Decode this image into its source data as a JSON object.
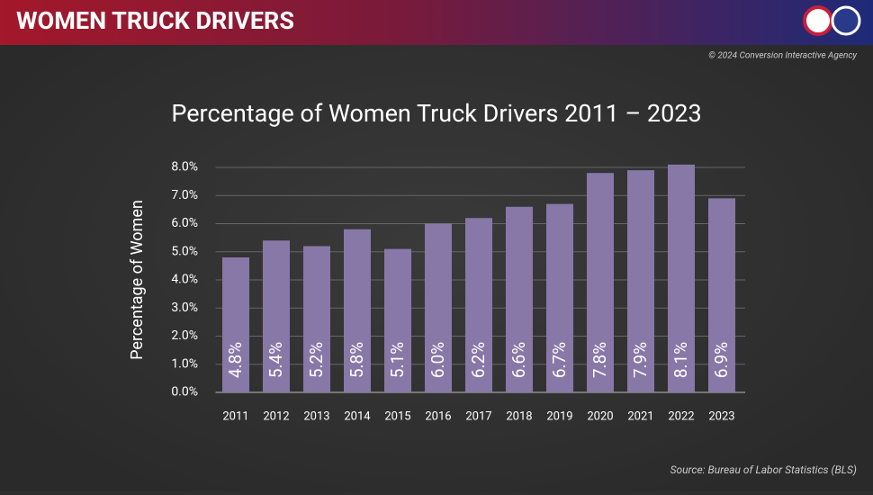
{
  "header": {
    "title": "WOMEN TRUCK DRIVERS",
    "copyright": "© 2024 Conversion Interactive Agency"
  },
  "chart_data": {
    "type": "bar",
    "title": "Percentage of Women Truck Drivers 2011 – 2023",
    "y_label": "Percentage of Women",
    "categories": [
      "2011",
      "2012",
      "2013",
      "2014",
      "2015",
      "2016",
      "2017",
      "2018",
      "2019",
      "2020",
      "2021",
      "2022",
      "2023"
    ],
    "values": [
      4.8,
      5.4,
      5.2,
      5.8,
      5.1,
      6.0,
      6.2,
      6.6,
      6.7,
      7.8,
      7.9,
      8.1,
      6.9
    ],
    "value_labels": [
      "4.8%",
      "5.4%",
      "5.2%",
      "5.8%",
      "5.1%",
      "6.0%",
      "6.2%",
      "6.6%",
      "6.7%",
      "7.8%",
      "7.9%",
      "8.1%",
      "6.9%"
    ],
    "color": "#8878a8",
    "ylim": [
      0,
      8
    ],
    "yticks": [
      {
        "value": 0,
        "label": "0.0%"
      },
      {
        "value": 1,
        "label": "1.0%"
      },
      {
        "value": 2,
        "label": "2.0%"
      },
      {
        "value": 3,
        "label": "3.0%"
      },
      {
        "value": 4,
        "label": "4.0%"
      },
      {
        "value": 5,
        "label": "5.0%"
      },
      {
        "value": 6,
        "label": "6.0%"
      },
      {
        "value": 7,
        "label": "7.0%"
      },
      {
        "value": 8,
        "label": "8.0%"
      }
    ],
    "grid": true,
    "source": "Source: Bureau of Labor Statistics (BLS)"
  }
}
